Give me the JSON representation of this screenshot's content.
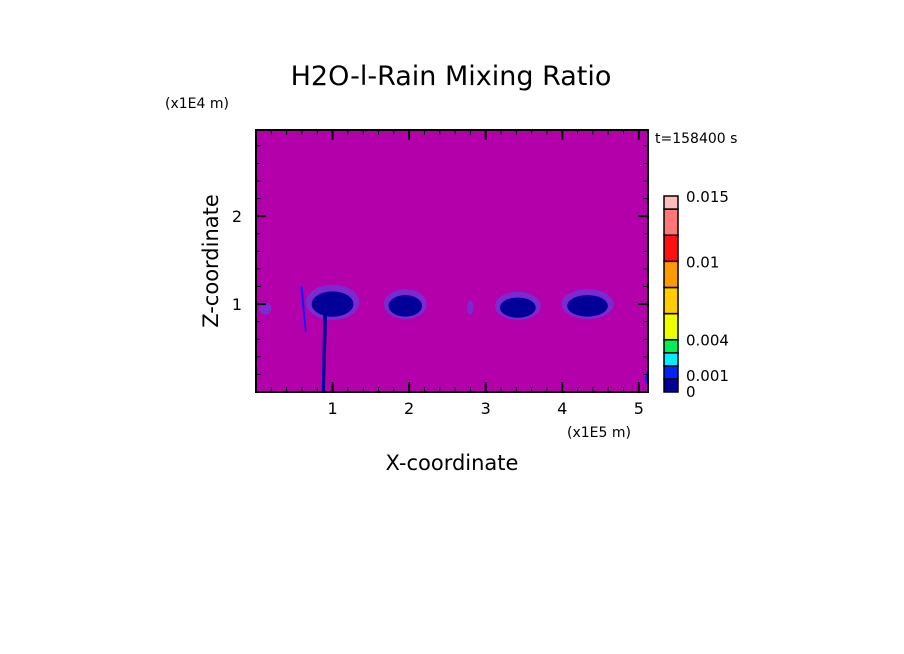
{
  "chart_data": {
    "type": "heatmap",
    "title": "H2O-l-Rain Mixing Ratio",
    "xlabel": "X-coordinate",
    "ylabel": "Z-coordinate",
    "x_unit": "(x1E5 m)",
    "y_unit": "(x1E4 m)",
    "time_label": "t=158400 s",
    "xlim": [
      0,
      5.12
    ],
    "ylim": [
      0,
      2.98
    ],
    "x_ticks": [
      1,
      2,
      3,
      4,
      5
    ],
    "y_ticks": [
      1,
      2
    ],
    "x_tick_labels": [
      "1",
      "2",
      "3",
      "4",
      "5"
    ],
    "y_tick_labels": [
      "1",
      "2"
    ],
    "background_color": "#b400aa",
    "colorbar": {
      "levels": [
        0,
        0.001,
        0.002,
        0.003,
        0.004,
        0.006,
        0.008,
        0.01,
        0.012,
        0.014,
        0.015
      ],
      "colors": [
        "#000099",
        "#0022ff",
        "#00eeff",
        "#00ee55",
        "#eeff00",
        "#ffcc00",
        "#ff9900",
        "#ff1111",
        "#ff7777",
        "#ffbbbb"
      ],
      "tick_values": [
        0,
        0.001,
        0.004,
        0.01,
        0.015
      ],
      "tick_labels": [
        "0",
        "0.001",
        "0.004",
        "0.01",
        "0.015"
      ]
    }
  }
}
